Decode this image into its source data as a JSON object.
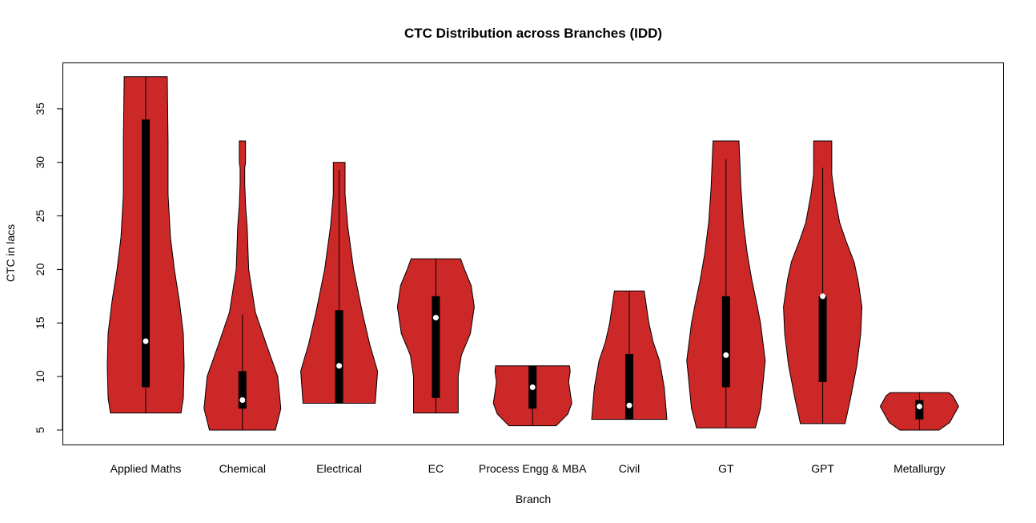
{
  "chart_data": {
    "type": "violin",
    "title": "CTC Distribution across Branches (IDD)",
    "xlabel": "Branch",
    "ylabel": "CTC in lacs",
    "ylim": [
      3.65,
      39.33
    ],
    "yticks": [
      5,
      10,
      15,
      20,
      25,
      30,
      35
    ],
    "grid": false,
    "fill_color": "#CD2828",
    "categories": [
      "Applied Maths",
      "Chemical",
      "Electrical",
      "EC",
      "Process Engg & MBA",
      "Civil",
      "GT",
      "GPT",
      "Metallurgy"
    ],
    "series": [
      {
        "min": 6.6,
        "max": 38,
        "q1": 9,
        "median": 13.3,
        "q3": 34,
        "whisker_low": 6.6,
        "whisker_high": 38,
        "density": [
          [
            6.6,
            0.9
          ],
          [
            8,
            0.96
          ],
          [
            11,
            0.98
          ],
          [
            14,
            0.96
          ],
          [
            17,
            0.86
          ],
          [
            20,
            0.73
          ],
          [
            23,
            0.63
          ],
          [
            27,
            0.57
          ],
          [
            32,
            0.57
          ],
          [
            38,
            0.55
          ]
        ]
      },
      {
        "min": 5,
        "max": 32,
        "q1": 7,
        "median": 7.8,
        "q3": 10.5,
        "whisker_low": 5,
        "whisker_high": 15.8,
        "density": [
          [
            5,
            0.84
          ],
          [
            7,
            0.98
          ],
          [
            10,
            0.9
          ],
          [
            13,
            0.61
          ],
          [
            16,
            0.33
          ],
          [
            20,
            0.16
          ],
          [
            24,
            0.12
          ],
          [
            26,
            0.08
          ],
          [
            28,
            0.06
          ],
          [
            29.5,
            0.06
          ],
          [
            30,
            0.08
          ],
          [
            32,
            0.08
          ]
        ]
      },
      {
        "min": 7.5,
        "max": 30,
        "q1": 7.5,
        "median": 11,
        "q3": 16.2,
        "whisker_low": 7.5,
        "whisker_high": 29.3,
        "density": [
          [
            7.5,
            0.92
          ],
          [
            10.5,
            0.98
          ],
          [
            13,
            0.78
          ],
          [
            16,
            0.59
          ],
          [
            20,
            0.37
          ],
          [
            24,
            0.22
          ],
          [
            27,
            0.15
          ],
          [
            30,
            0.15
          ]
        ]
      },
      {
        "min": 6.6,
        "max": 21,
        "q1": 8,
        "median": 15.5,
        "q3": 17.5,
        "whisker_low": 6.6,
        "whisker_high": 21,
        "density": [
          [
            6.6,
            0.57
          ],
          [
            10,
            0.57
          ],
          [
            12,
            0.65
          ],
          [
            14,
            0.88
          ],
          [
            16.5,
            0.98
          ],
          [
            18.5,
            0.9
          ],
          [
            20,
            0.73
          ],
          [
            21,
            0.63
          ]
        ]
      },
      {
        "min": 5.4,
        "max": 11,
        "q1": 7,
        "median": 9,
        "q3": 11,
        "whisker_low": 5.4,
        "whisker_high": 11,
        "density": [
          [
            5.4,
            0.6
          ],
          [
            6.5,
            0.9
          ],
          [
            7.5,
            1.0
          ],
          [
            8.5,
            0.96
          ],
          [
            9.5,
            0.92
          ],
          [
            10.5,
            0.96
          ],
          [
            11,
            0.94
          ]
        ]
      },
      {
        "min": 6,
        "max": 18,
        "q1": 6,
        "median": 7.3,
        "q3": 12.1,
        "whisker_low": 6,
        "whisker_high": 18,
        "density": [
          [
            6,
            0.96
          ],
          [
            9,
            0.89
          ],
          [
            11.5,
            0.77
          ],
          [
            13.2,
            0.61
          ],
          [
            15,
            0.5
          ],
          [
            16.7,
            0.43
          ],
          [
            18,
            0.38
          ]
        ]
      },
      {
        "min": 5.2,
        "max": 32,
        "q1": 9,
        "median": 12,
        "q3": 17.5,
        "whisker_low": 5.2,
        "whisker_high": 30.3,
        "density": [
          [
            5.2,
            0.75
          ],
          [
            7,
            0.88
          ],
          [
            11.5,
            1.0
          ],
          [
            15,
            0.88
          ],
          [
            16.7,
            0.79
          ],
          [
            19,
            0.66
          ],
          [
            21.5,
            0.54
          ],
          [
            24.4,
            0.44
          ],
          [
            27.7,
            0.38
          ],
          [
            32,
            0.33
          ]
        ]
      },
      {
        "min": 5.6,
        "max": 32,
        "q1": 9.5,
        "median": 17.5,
        "q3": 17.5,
        "whisker_low": 5.6,
        "whisker_high": 29.5,
        "density": [
          [
            5.6,
            0.57
          ],
          [
            7.8,
            0.7
          ],
          [
            11,
            0.87
          ],
          [
            14,
            0.97
          ],
          [
            16.5,
            1.0
          ],
          [
            19,
            0.9
          ],
          [
            20.7,
            0.8
          ],
          [
            22.7,
            0.59
          ],
          [
            24.4,
            0.43
          ],
          [
            27,
            0.3
          ],
          [
            28.9,
            0.23
          ],
          [
            32,
            0.23
          ]
        ]
      },
      {
        "min": 5,
        "max": 8.5,
        "q1": 6,
        "median": 7.2,
        "q3": 7.8,
        "whisker_low": 5,
        "whisker_high": 8.5,
        "density": [
          [
            5,
            0.5
          ],
          [
            5.7,
            0.77
          ],
          [
            7.2,
            1.0
          ],
          [
            8.2,
            0.85
          ],
          [
            8.5,
            0.75
          ]
        ]
      }
    ]
  }
}
